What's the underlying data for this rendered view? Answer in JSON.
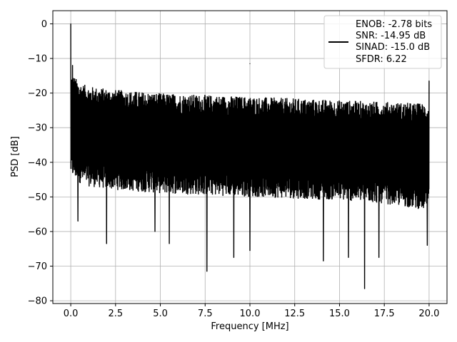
{
  "chart_data": {
    "type": "line",
    "title": "",
    "xlabel": "Frequency [MHz]",
    "ylabel": "PSD [dB]",
    "xlim": [
      -1.0,
      21.0
    ],
    "ylim": [
      -80.8,
      3.8
    ],
    "xticks": [
      0.0,
      2.5,
      5.0,
      7.5,
      10.0,
      12.5,
      15.0,
      17.5,
      20.0
    ],
    "xtick_labels": [
      "0.0",
      "2.5",
      "5.0",
      "7.5",
      "10.0",
      "12.5",
      "15.0",
      "17.5",
      "20.0"
    ],
    "yticks": [
      0,
      -10,
      -20,
      -30,
      -40,
      -50,
      -60,
      -70,
      -80
    ],
    "ytick_labels": [
      "0",
      "−10",
      "−20",
      "−30",
      "−40",
      "−50",
      "−60",
      "−70",
      "−80"
    ],
    "grid": true,
    "legend_position": "top-right",
    "legend_lines": [
      "ENOB: -2.78 bits",
      "SNR: -14.95 dB",
      "SINAD: -15.0 dB",
      "SFDR: 6.22"
    ],
    "series": [
      {
        "color": "#000000",
        "noise_floor": {
          "x": [
            0.0,
            0.5,
            1.0,
            2.5,
            5.0,
            7.5,
            10.0,
            12.5,
            15.0,
            17.5,
            20.0
          ],
          "upper": [
            -14,
            -17,
            -18,
            -19,
            -20,
            -20.5,
            -21,
            -21.5,
            -22,
            -22.5,
            -23
          ],
          "lower": [
            -44,
            -46,
            -47,
            -48,
            -49,
            -49.5,
            -50,
            -50.5,
            -51,
            -52,
            -54
          ]
        },
        "peaks": [
          {
            "x": 0.0,
            "y": 0.0
          },
          {
            "x": 0.1,
            "y": -12.0
          },
          {
            "x": 10.0,
            "y": -11.5
          },
          {
            "x": 20.0,
            "y": -16.5
          }
        ],
        "dips": [
          {
            "x": 0.4,
            "y": -57.0
          },
          {
            "x": 2.0,
            "y": -63.5
          },
          {
            "x": 4.7,
            "y": -60.0
          },
          {
            "x": 5.5,
            "y": -63.5
          },
          {
            "x": 7.6,
            "y": -71.5
          },
          {
            "x": 9.1,
            "y": -67.5
          },
          {
            "x": 10.0,
            "y": -65.5
          },
          {
            "x": 14.1,
            "y": -68.5
          },
          {
            "x": 15.5,
            "y": -67.5
          },
          {
            "x": 16.4,
            "y": -76.5
          },
          {
            "x": 17.2,
            "y": -67.5
          },
          {
            "x": 19.9,
            "y": -64.0
          }
        ]
      }
    ]
  },
  "colors": {
    "line": "#000000",
    "grid": "#b0b0b0",
    "axes": "#000000",
    "legend_border": "#cccccc"
  }
}
